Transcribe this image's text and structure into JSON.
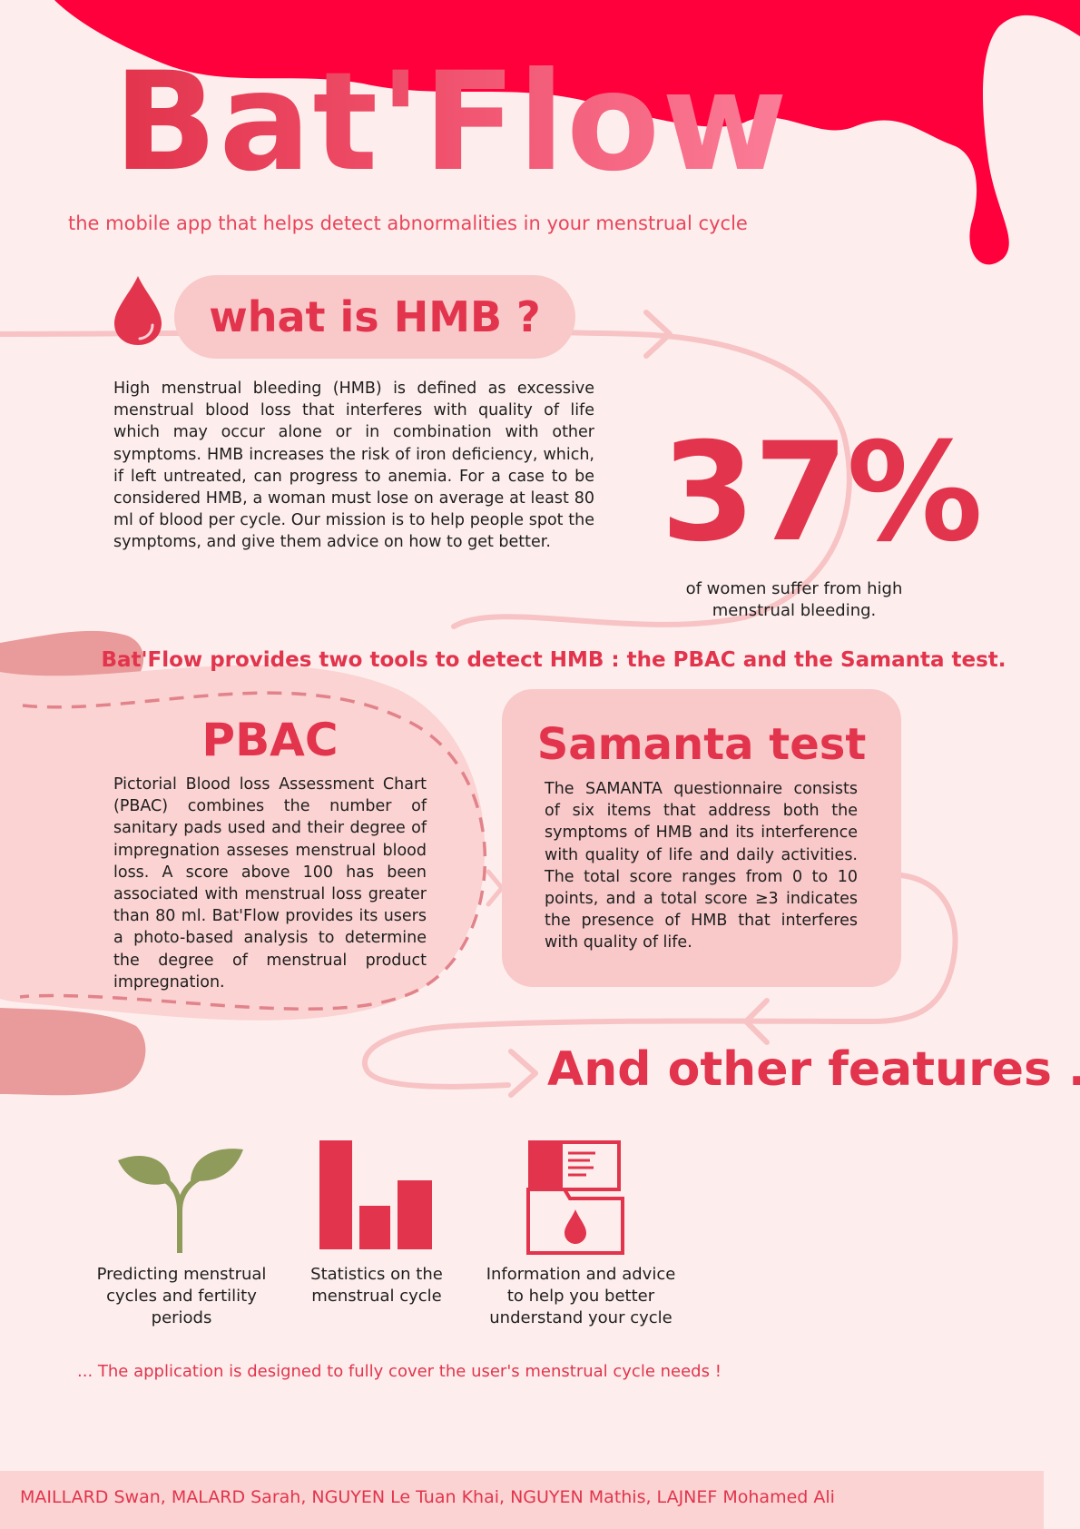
{
  "header": {
    "title": "Bat'Flow",
    "subtitle": "the mobile app that helps detect abnormalities in your menstrual cycle"
  },
  "hmb": {
    "title": "what is HMB ?",
    "icon": "blood-drop-icon",
    "text": "High menstrual bleeding (HMB) is defined as excessive menstrual blood loss that interferes with quality of life which may occur alone or in combination with other symptoms. HMB increases the risk of iron deficiency, which, if left untreated, can progress to anemia. For a case to be considered HMB, a woman must lose on average at least 80 ml of blood per cycle. Our mission is to help people spot the symptoms, and give them advice on how to get better."
  },
  "stat": {
    "value": "37%",
    "caption": "of women suffer from high menstrual bleeding."
  },
  "tools": {
    "intro": "Bat'Flow provides two tools to detect HMB : the PBAC and the Samanta test."
  },
  "pbac": {
    "title": "PBAC",
    "text": "Pictorial Blood loss Assessment Chart (PBAC) combines the number of sanitary pads used and their degree of impregnation asseses menstrual blood loss. A score above 100 has been associated with menstrual loss greater than 80 ml. Bat'Flow provides its users a photo-based analysis to determine the degree of menstrual product impregnation."
  },
  "samanta": {
    "title": "Samanta test",
    "text": "The SAMANTA questionnaire consists of six items that address both the symptoms of HMB and its interference with quality of life and daily activities. The total score ranges from 0 to 10 points, and a total score ≥3 indicates the presence of HMB that interferes with quality of life."
  },
  "features": {
    "title": "And other features ...",
    "items": [
      {
        "icon": "sprout-icon",
        "label": "Predicting menstrual cycles and fertility periods"
      },
      {
        "icon": "bar-chart-icon",
        "label": "Statistics on the menstrual cycle"
      },
      {
        "icon": "document-drop-icon",
        "label": "Information and advice to help you better understand your cycle"
      }
    ],
    "closing": "... The application is designed to fully cover the user's menstrual cycle needs !"
  },
  "footer": {
    "authors": "MAILLARD Swan, MALARD Sarah, NGUYEN Le Tuan Khai, NGUYEN Mathis, LAJNEF Mohamed Ali"
  },
  "colors": {
    "background": "#fdeeed",
    "accent": "#e2344c",
    "drip": "#ff003c",
    "pink_soft": "#f9c8c9",
    "flow_line": "#f7c3c4",
    "leaf": "#8e9b5b"
  }
}
